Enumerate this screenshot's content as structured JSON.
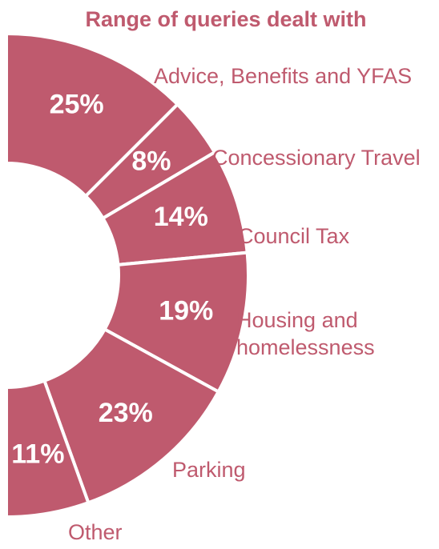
{
  "chart_data": {
    "type": "pie",
    "donut": true,
    "half": true,
    "title": "Range of queries dealt with",
    "categories": [
      "Advice, Benefits and YFAS",
      "Concessionary Travel",
      "Council Tax",
      "Housing and homelessness",
      "Parking",
      "Other"
    ],
    "values": [
      25,
      8,
      14,
      19,
      23,
      11
    ],
    "value_labels": [
      "25%",
      "8%",
      "14%",
      "19%",
      "23%",
      "11%"
    ],
    "color": "#bf5a6e"
  }
}
